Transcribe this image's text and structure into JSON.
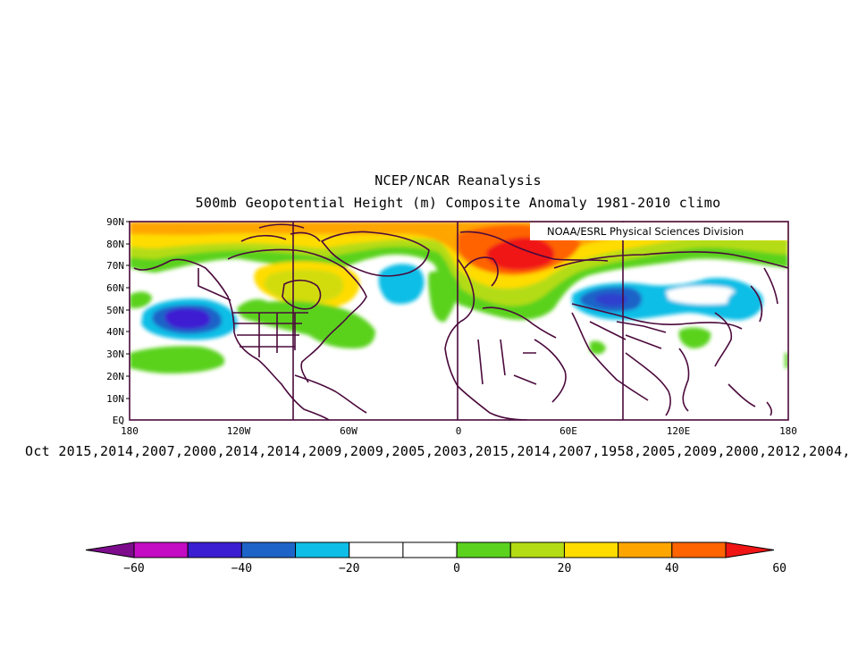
{
  "title_line1": "NCEP/NCAR Reanalysis",
  "title_line2": "500mb Geopotential Height (m) Composite Anomaly 1981-2010 climo",
  "subtitle": "Oct 2015,2014,2007,2000,2014,2014,2009,2009,2005,2003,2015,2014,2007,1958,2005,2009,2000,2012,2004,",
  "credit": "NOAA/ESRL Physical Sciences Division",
  "lat_labels": [
    "90N",
    "80N",
    "70N",
    "60N",
    "50N",
    "40N",
    "30N",
    "20N",
    "10N",
    "EQ"
  ],
  "lon_labels": [
    "180",
    "120W",
    "60W",
    "0",
    "60E",
    "120E",
    "180"
  ],
  "colorbar": {
    "labels": [
      "-60",
      "-40",
      "-20",
      "0",
      "20",
      "40",
      "60"
    ],
    "colors": [
      "#7d0c8c",
      "#c30cc3",
      "#3c1ed2",
      "#1e64c8",
      "#0fbee6",
      "#ffffff",
      "#ffffff",
      "#5ad21e",
      "#b4dc14",
      "#ffdc00",
      "#ffa500",
      "#ff6400",
      "#f01414"
    ]
  },
  "colors": {
    "frame": "#4b0a3c",
    "coast": "#4b0a3c"
  }
}
